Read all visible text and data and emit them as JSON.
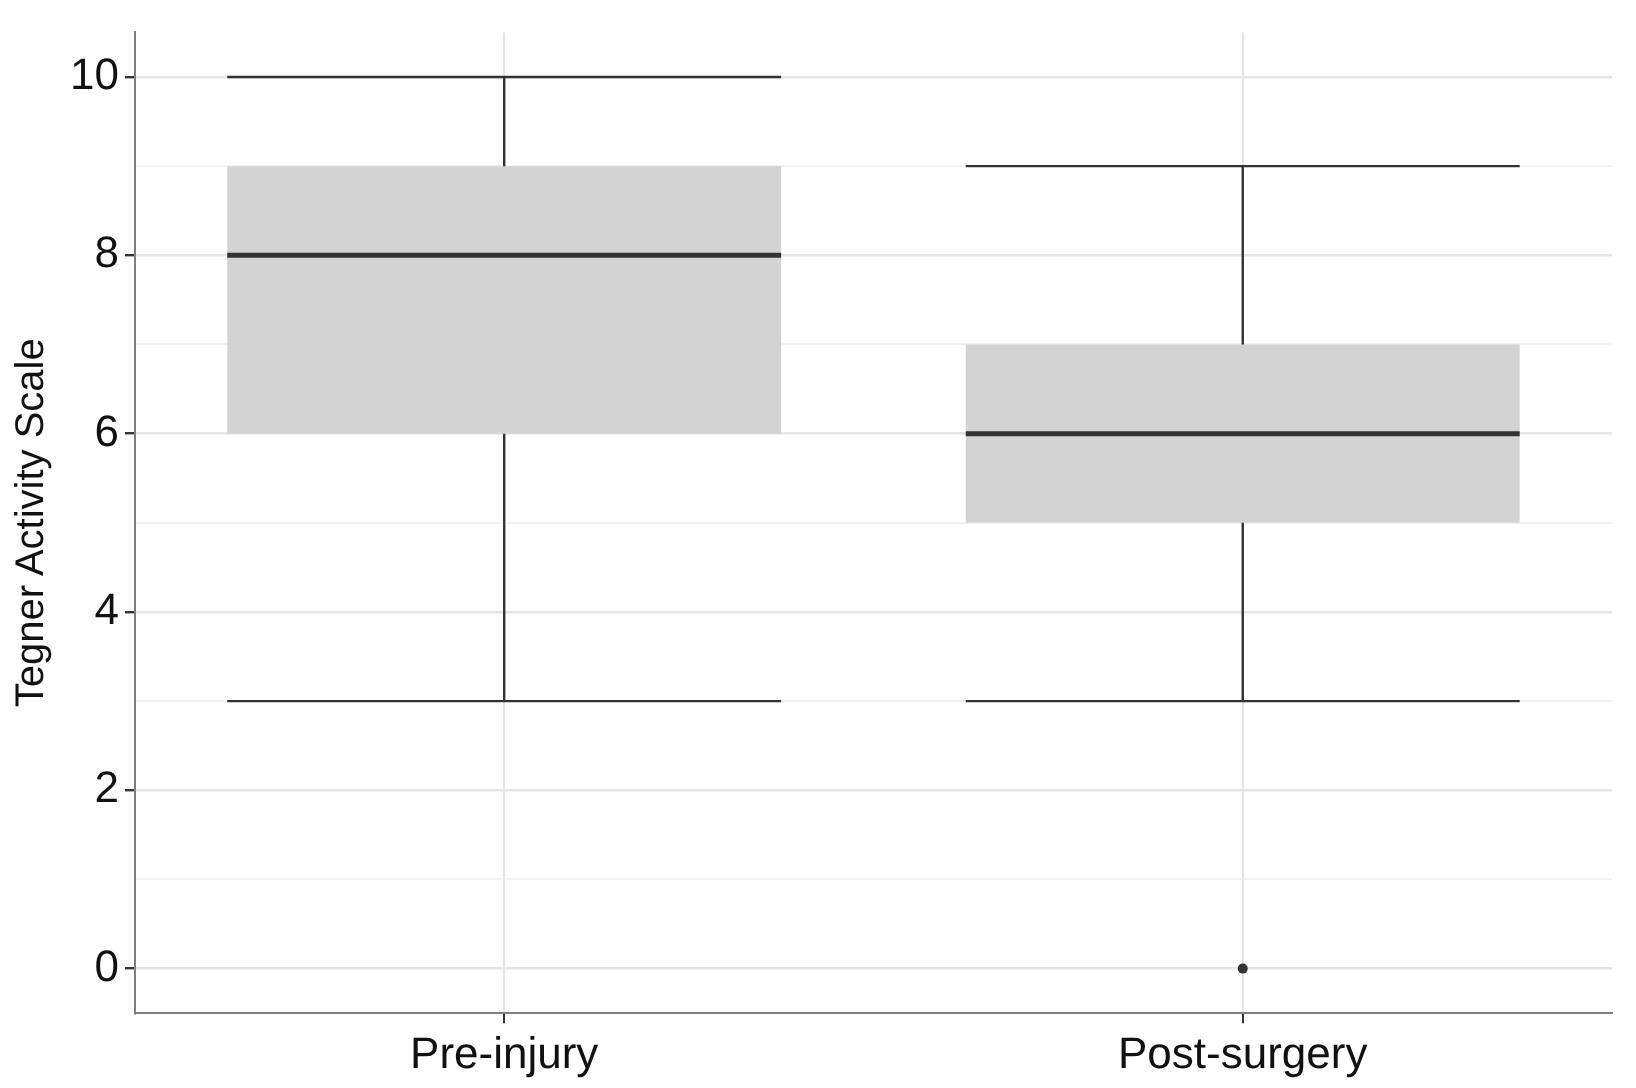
{
  "chart_data": {
    "type": "box",
    "ylabel": "Tegner Activity Scale",
    "categories": [
      "Pre-injury",
      "Post-surgery"
    ],
    "color": "#d3d3d3",
    "boxes": [
      {
        "low": 3,
        "q1": 6,
        "median": 8,
        "q3": 9,
        "high": 10
      },
      {
        "low": 3,
        "q1": 5,
        "median": 6,
        "q3": 7,
        "high": 9,
        "outliers": [
          0
        ]
      }
    ],
    "ylim": [
      -0.5,
      10.5
    ],
    "yticks": [
      0,
      {
        "value": 1,
        "label": null
      },
      2,
      {
        "value": 3,
        "label": null
      },
      4,
      {
        "value": 5,
        "label": null
      },
      6,
      {
        "value": 7,
        "label": null
      },
      8,
      {
        "value": 9,
        "label": null
      },
      10
    ],
    "grid": true
  }
}
